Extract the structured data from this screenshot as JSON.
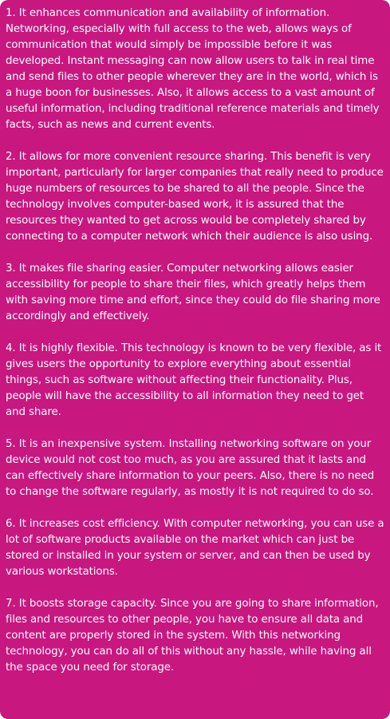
{
  "document": {
    "paragraphs": [
      "1. It enhances communication and availability of information. Networking, especially with full access to the web, allows ways of communication that would simply be impossible before it was developed. Instant messaging can now allow users to talk in real time and send files to other people wherever they are in the world, which is a huge boon for businesses. Also, it allows access to a vast amount of useful information, including traditional reference materials and timely facts, such as news and current events.",
      "2. It allows for more convenient resource sharing. This benefit is very important, particularly for larger companies that really need to produce huge numbers of resources to be shared to all the people. Since the technology involves computer-based work, it is assured that the resources they wanted to get across would be completely shared by connecting to a computer network which their audience is also using.",
      "3. It makes file sharing easier. Computer networking allows easier accessibility for people to share their files, which greatly helps them with saving more time and effort, since they could do file sharing more accordingly and effectively.",
      "4. It is highly flexible. This technology is known to be very flexible, as it gives users the opportunity to explore everything about essential things, such as software without affecting their functionality. Plus, people will have the accessibility to all information they need to get and share.",
      "5. It is an inexpensive system. Installing networking software on your device would not cost too much, as you are assured that it lasts and can effectively share information to your peers. Also, there is no need to change the software regularly, as mostly it is not required to do so.",
      "6. It increases cost efficiency. With computer networking, you can use a lot of software products available on the market which can just be stored or installed in your system or server, and can then be used by various workstations.",
      "7. It boosts storage capacity. Since you are going to share information, files and resources to other people, you have to ensure all data and content are properly stored in the system. With this networking technology, you can do all of this without any hassle, while having all the space you need for storage."
    ]
  },
  "colors": {
    "panel_background": "#c8177f",
    "text": "#ffffff"
  }
}
